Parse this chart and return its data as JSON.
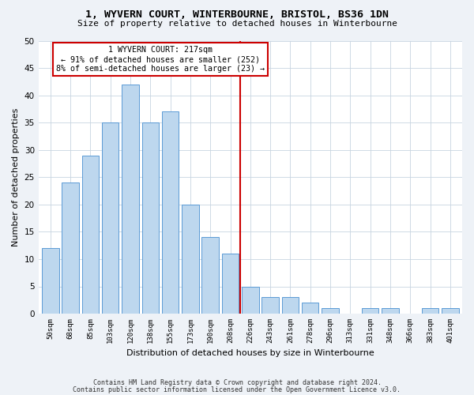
{
  "title1": "1, WYVERN COURT, WINTERBOURNE, BRISTOL, BS36 1DN",
  "title2": "Size of property relative to detached houses in Winterbourne",
  "xlabel": "Distribution of detached houses by size in Winterbourne",
  "ylabel": "Number of detached properties",
  "bar_labels": [
    "50sqm",
    "68sqm",
    "85sqm",
    "103sqm",
    "120sqm",
    "138sqm",
    "155sqm",
    "173sqm",
    "190sqm",
    "208sqm",
    "226sqm",
    "243sqm",
    "261sqm",
    "278sqm",
    "296sqm",
    "313sqm",
    "331sqm",
    "348sqm",
    "366sqm",
    "383sqm",
    "401sqm"
  ],
  "bar_values": [
    12,
    24,
    29,
    35,
    42,
    35,
    37,
    20,
    14,
    11,
    5,
    3,
    3,
    2,
    1,
    0,
    1,
    1,
    0,
    1,
    1
  ],
  "bar_color": "#BDD7EE",
  "bar_edge_color": "#5B9BD5",
  "vline_x": 9.5,
  "vline_color": "#CC0000",
  "annotation_title": "1 WYVERN COURT: 217sqm",
  "annotation_line1": "← 91% of detached houses are smaller (252)",
  "annotation_line2": "8% of semi-detached houses are larger (23) →",
  "annotation_box_color": "#CC0000",
  "ylim": [
    0,
    50
  ],
  "yticks": [
    0,
    5,
    10,
    15,
    20,
    25,
    30,
    35,
    40,
    45,
    50
  ],
  "footer1": "Contains HM Land Registry data © Crown copyright and database right 2024.",
  "footer2": "Contains public sector information licensed under the Open Government Licence v3.0.",
  "bg_color": "#EEF2F7",
  "plot_bg_color": "#FFFFFF",
  "grid_color": "#C8D4E0"
}
